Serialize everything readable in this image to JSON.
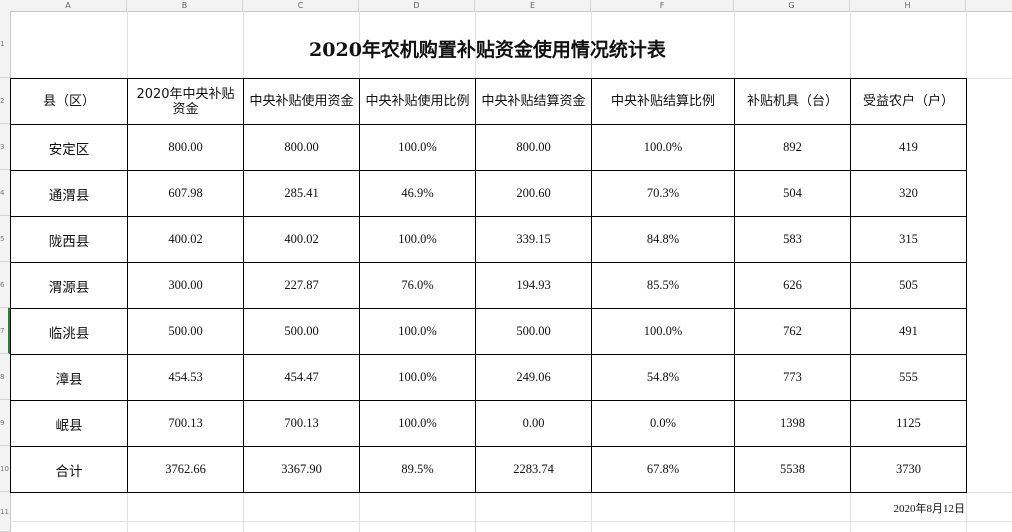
{
  "columns": [
    "A",
    "B",
    "C",
    "D",
    "E",
    "F",
    "G",
    "H"
  ],
  "rows": [
    "1",
    "2",
    "3",
    "4",
    "5",
    "6",
    "7",
    "8",
    "9",
    "10",
    "11"
  ],
  "title": "2020年农机购置补贴资金使用情况统计表",
  "headers": [
    "县（区）",
    "2020年中央补贴资金",
    "中央补贴使用资金",
    "中央补贴使用比例",
    "中央补贴结算资金",
    "中央补贴结算比例",
    "补贴机具（台）",
    "受益农户（户）"
  ],
  "table_rows": [
    {
      "county": "安定区",
      "allocated": "800.00",
      "used": "800.00",
      "used_ratio": "100.0%",
      "settled": "800.00",
      "settled_ratio": "100.0%",
      "machines": "892",
      "households": "419"
    },
    {
      "county": "通渭县",
      "allocated": "607.98",
      "used": "285.41",
      "used_ratio": "46.9%",
      "settled": "200.60",
      "settled_ratio": "70.3%",
      "machines": "504",
      "households": "320"
    },
    {
      "county": "陇西县",
      "allocated": "400.02",
      "used": "400.02",
      "used_ratio": "100.0%",
      "settled": "339.15",
      "settled_ratio": "84.8%",
      "machines": "583",
      "households": "315"
    },
    {
      "county": "渭源县",
      "allocated": "300.00",
      "used": "227.87",
      "used_ratio": "76.0%",
      "settled": "194.93",
      "settled_ratio": "85.5%",
      "machines": "626",
      "households": "505"
    },
    {
      "county": "临洮县",
      "allocated": "500.00",
      "used": "500.00",
      "used_ratio": "100.0%",
      "settled": "500.00",
      "settled_ratio": "100.0%",
      "machines": "762",
      "households": "491"
    },
    {
      "county": "漳县",
      "allocated": "454.53",
      "used": "454.47",
      "used_ratio": "100.0%",
      "settled": "249.06",
      "settled_ratio": "54.8%",
      "machines": "773",
      "households": "555"
    },
    {
      "county": "岷县",
      "allocated": "700.13",
      "used": "700.13",
      "used_ratio": "100.0%",
      "settled": "0.00",
      "settled_ratio": "0.0%",
      "machines": "1398",
      "households": "1125"
    },
    {
      "county": "合计",
      "allocated": "3762.66",
      "used": "3367.90",
      "used_ratio": "89.5%",
      "settled": "2283.74",
      "settled_ratio": "67.8%",
      "machines": "5538",
      "households": "3730"
    }
  ],
  "footer_date": "2020年8月12日"
}
